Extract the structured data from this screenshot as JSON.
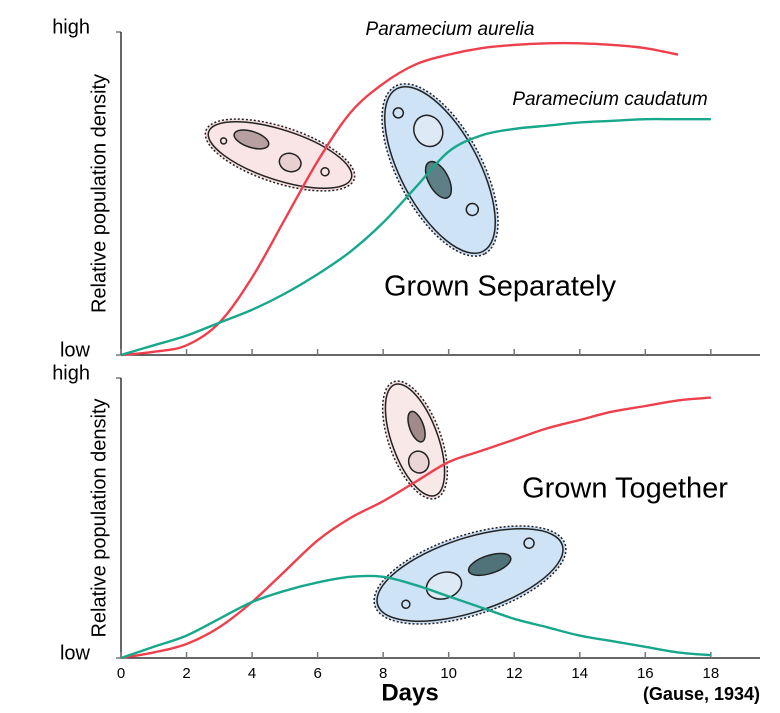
{
  "chart_data": [
    {
      "type": "line",
      "ylabel": "Relative population density",
      "annotation": "Grown Separately",
      "x": [
        0,
        1,
        2,
        3,
        4,
        5,
        6,
        7,
        8,
        9,
        10,
        11,
        12,
        13,
        14,
        15,
        16,
        17,
        18
      ],
      "series": [
        {
          "name": "Paramecium aurelia",
          "color": "#ee3f4d",
          "values": [
            0,
            0.01,
            0.03,
            0.1,
            0.24,
            0.42,
            0.6,
            0.75,
            0.84,
            0.9,
            0.93,
            0.95,
            0.96,
            0.965,
            0.965,
            0.96,
            0.95,
            0.93,
            null
          ]
        },
        {
          "name": "Paramecium caudatum",
          "color": "#17a78b",
          "values": [
            0,
            0.03,
            0.06,
            0.1,
            0.14,
            0.19,
            0.25,
            0.32,
            0.41,
            0.52,
            0.63,
            0.68,
            0.7,
            0.71,
            0.72,
            0.725,
            0.73,
            0.73,
            0.73
          ]
        }
      ],
      "xlim": [
        0,
        19.5
      ],
      "ylim": [
        0,
        1
      ],
      "yticks": [
        {
          "value": 0,
          "label": "low"
        },
        {
          "value": 1,
          "label": "high"
        }
      ]
    },
    {
      "type": "line",
      "ylabel": "Relative population density",
      "annotation": "Grown Together",
      "xlabel": "Days",
      "x": [
        0,
        1,
        2,
        3,
        4,
        5,
        6,
        7,
        8,
        9,
        10,
        11,
        12,
        13,
        14,
        15,
        16,
        17,
        18
      ],
      "series": [
        {
          "color": "#ee3f4d",
          "values": [
            0,
            0.02,
            0.05,
            0.11,
            0.2,
            0.31,
            0.42,
            0.5,
            0.56,
            0.63,
            0.7,
            0.74,
            0.78,
            0.82,
            0.85,
            0.88,
            0.9,
            0.92,
            0.93
          ]
        },
        {
          "color": "#17a78b",
          "values": [
            0,
            0.04,
            0.08,
            0.14,
            0.2,
            0.24,
            0.27,
            0.29,
            0.29,
            0.26,
            0.22,
            0.18,
            0.14,
            0.11,
            0.08,
            0.06,
            0.04,
            0.02,
            0.01
          ]
        }
      ],
      "xlim": [
        0,
        19.5
      ],
      "ylim": [
        0,
        1
      ],
      "xticks": [
        0,
        2,
        4,
        6,
        8,
        10,
        12,
        14,
        16,
        18
      ],
      "yticks": [
        {
          "value": 0,
          "label": "low"
        },
        {
          "value": 1,
          "label": "high"
        }
      ]
    }
  ],
  "source": "(Gause, 1934)"
}
